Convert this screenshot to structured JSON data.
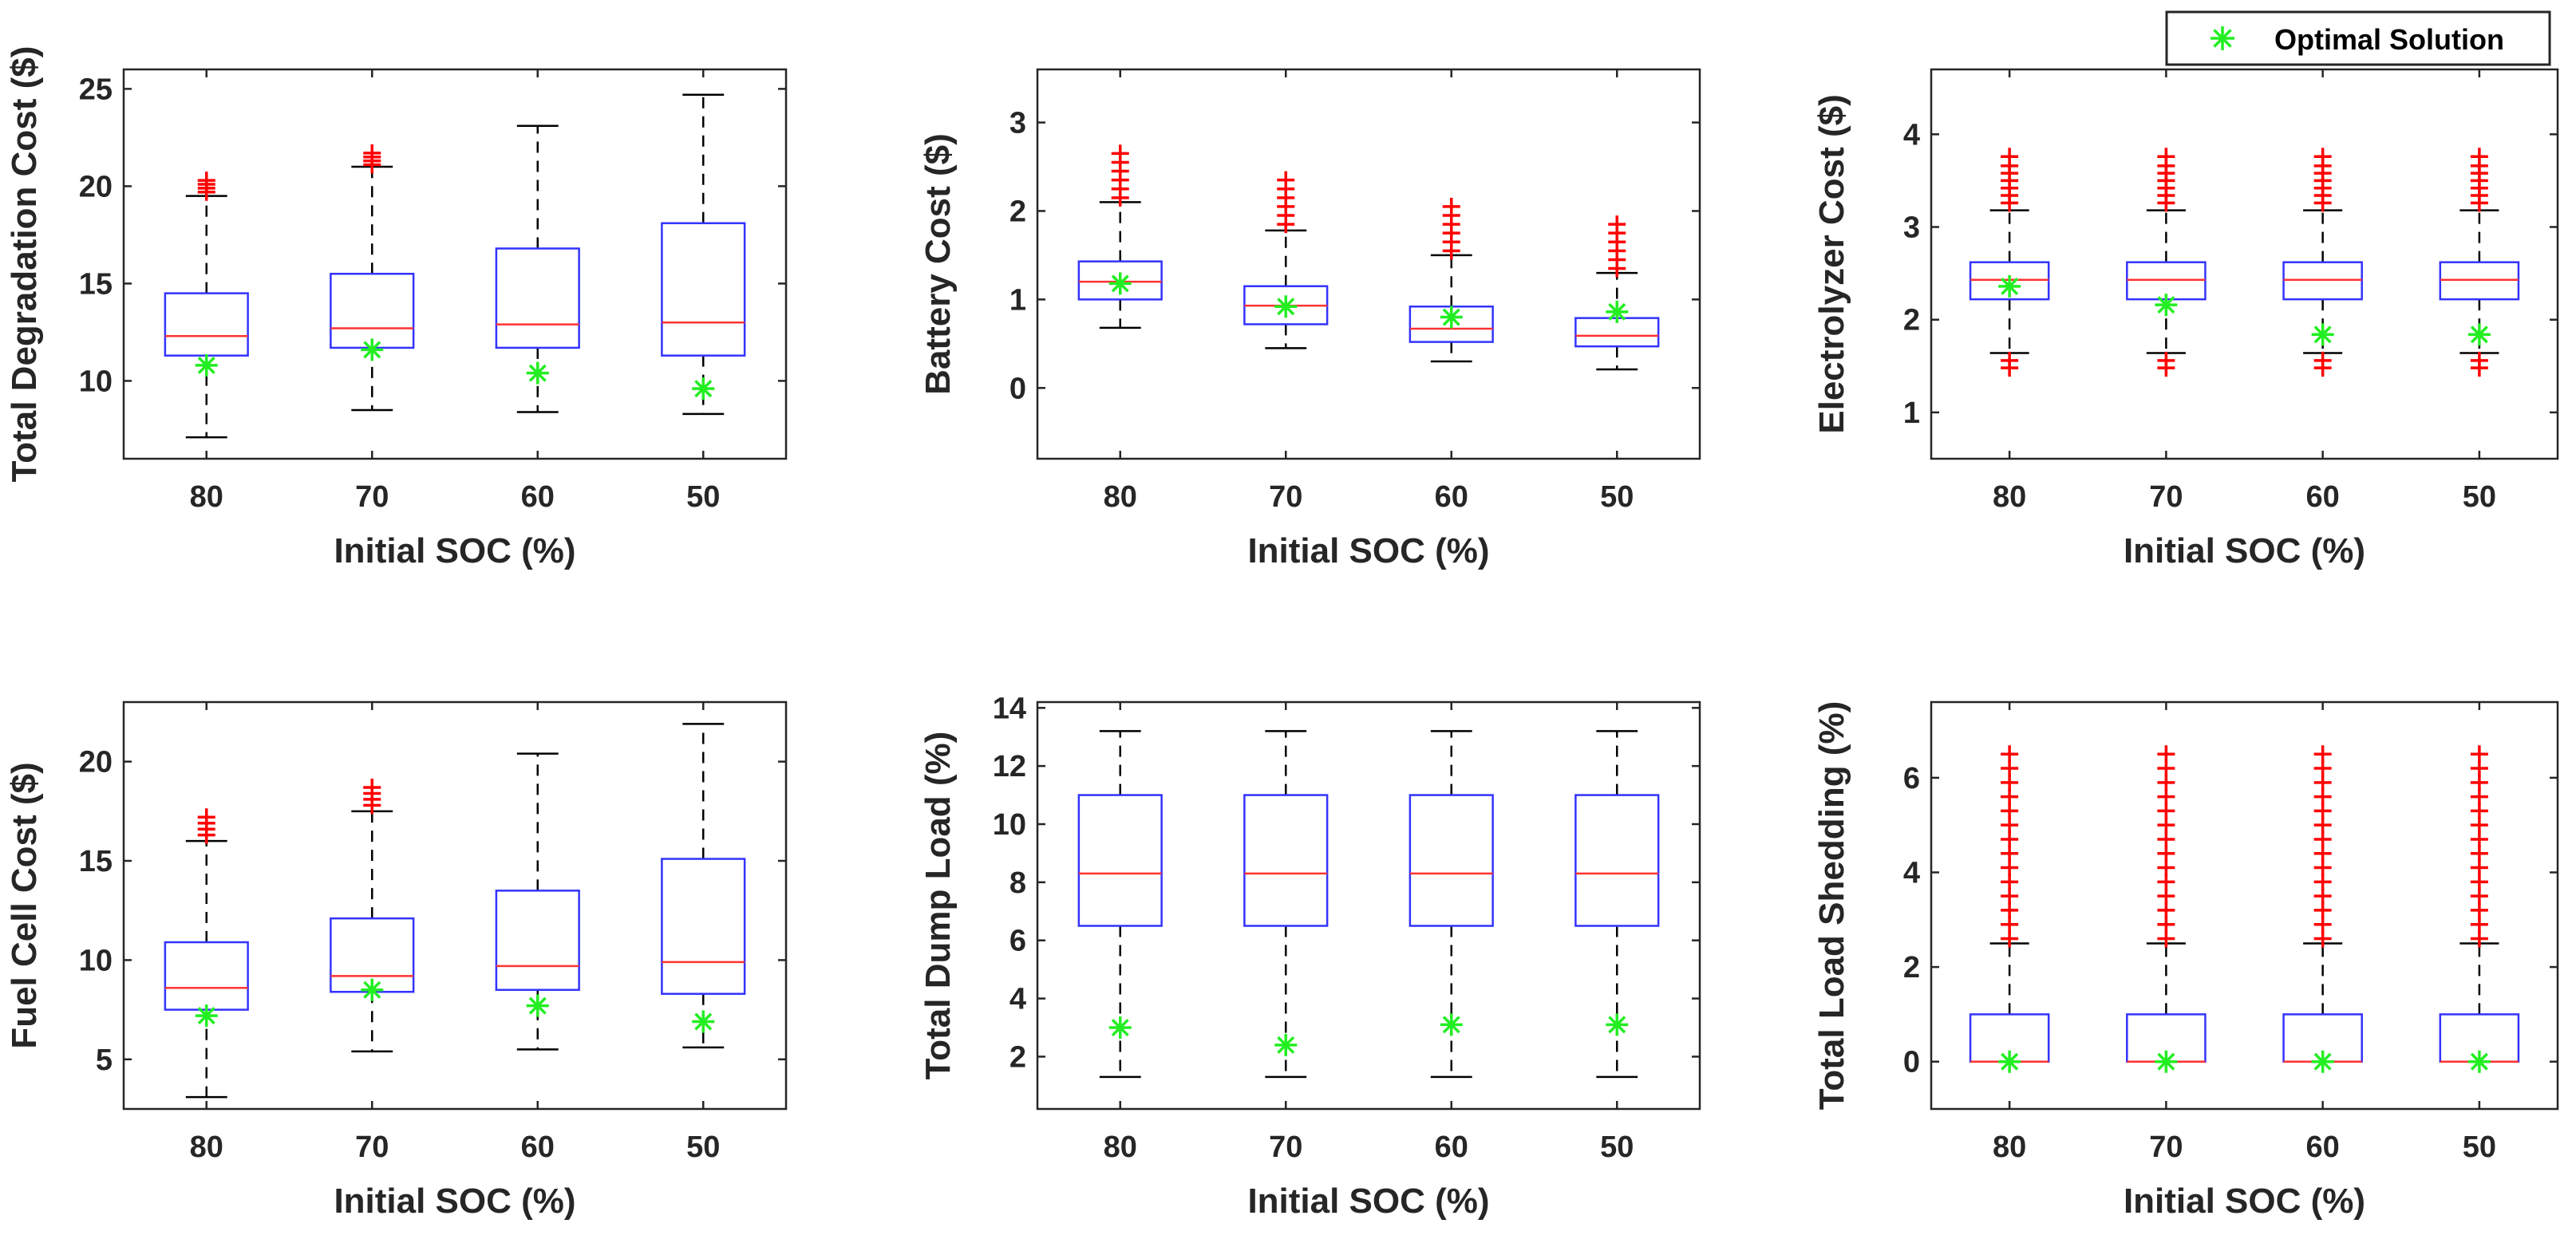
{
  "colors": {
    "box": "#3333ff",
    "median": "#ff3333",
    "whisker": "#000000",
    "outlier": "#ff0000",
    "optimal": "#22ee22",
    "axis": "#262626"
  },
  "legend": {
    "label": "Optimal Solution",
    "marker_icon": "green-asterisk-icon"
  },
  "chart_data": [
    {
      "type": "boxplot",
      "xlabel": "Initial SOC (%)",
      "ylabel": "Total Degradation Cost ($)",
      "categories": [
        "80",
        "70",
        "60",
        "50"
      ],
      "ylim": [
        6,
        26
      ],
      "yticks": [
        10,
        15,
        20,
        25
      ],
      "boxes": [
        {
          "lower_whisker": 7.1,
          "q1": 11.3,
          "median": 12.3,
          "q3": 14.5,
          "upper_whisker": 19.5,
          "outliers": [
            19.7,
            19.9,
            20.1,
            20.3
          ]
        },
        {
          "lower_whisker": 8.5,
          "q1": 11.7,
          "median": 12.7,
          "q3": 15.5,
          "upper_whisker": 21.0,
          "outliers": [
            21.1,
            21.3,
            21.5,
            21.7
          ]
        },
        {
          "lower_whisker": 8.4,
          "q1": 11.7,
          "median": 12.9,
          "q3": 16.8,
          "upper_whisker": 23.1,
          "outliers": []
        },
        {
          "lower_whisker": 8.3,
          "q1": 11.3,
          "median": 13.0,
          "q3": 18.1,
          "upper_whisker": 24.7,
          "outliers": []
        }
      ],
      "optimal_solution": [
        10.8,
        11.6,
        10.4,
        9.6
      ]
    },
    {
      "type": "boxplot",
      "xlabel": "Initial SOC (%)",
      "ylabel": "Battery Cost ($)",
      "categories": [
        "80",
        "70",
        "60",
        "50"
      ],
      "ylim": [
        -0.8,
        3.6
      ],
      "yticks": [
        0,
        1,
        2,
        3
      ],
      "boxes": [
        {
          "lower_whisker": 0.68,
          "q1": 1.0,
          "median": 1.2,
          "q3": 1.43,
          "upper_whisker": 2.1,
          "outliers": [
            2.15,
            2.25,
            2.35,
            2.45,
            2.55,
            2.65
          ]
        },
        {
          "lower_whisker": 0.45,
          "q1": 0.72,
          "median": 0.93,
          "q3": 1.15,
          "upper_whisker": 1.78,
          "outliers": [
            1.85,
            1.95,
            2.05,
            2.15,
            2.25,
            2.35
          ]
        },
        {
          "lower_whisker": 0.3,
          "q1": 0.52,
          "median": 0.67,
          "q3": 0.92,
          "upper_whisker": 1.5,
          "outliers": [
            1.55,
            1.65,
            1.75,
            1.85,
            1.95,
            2.05
          ]
        },
        {
          "lower_whisker": 0.21,
          "q1": 0.47,
          "median": 0.59,
          "q3": 0.79,
          "upper_whisker": 1.3,
          "outliers": [
            1.35,
            1.45,
            1.55,
            1.65,
            1.75,
            1.85
          ]
        }
      ],
      "optimal_solution": [
        1.18,
        0.92,
        0.8,
        0.86
      ]
    },
    {
      "type": "boxplot",
      "xlabel": "Initial SOC (%)",
      "ylabel": "Electrolyzer Cost ($)",
      "categories": [
        "80",
        "70",
        "60",
        "50"
      ],
      "ylim": [
        0.5,
        4.7
      ],
      "yticks": [
        1,
        2,
        3,
        4
      ],
      "boxes": [
        {
          "lower_whisker": 1.64,
          "q1": 2.22,
          "median": 2.43,
          "q3": 2.62,
          "upper_whisker": 3.18,
          "outliers": [
            1.48,
            1.56,
            3.26,
            3.34,
            3.42,
            3.5,
            3.58,
            3.66,
            3.76
          ]
        },
        {
          "lower_whisker": 1.64,
          "q1": 2.22,
          "median": 2.43,
          "q3": 2.62,
          "upper_whisker": 3.18,
          "outliers": [
            1.48,
            1.56,
            3.26,
            3.34,
            3.42,
            3.5,
            3.58,
            3.66,
            3.76
          ]
        },
        {
          "lower_whisker": 1.64,
          "q1": 2.22,
          "median": 2.43,
          "q3": 2.62,
          "upper_whisker": 3.18,
          "outliers": [
            1.48,
            1.56,
            3.26,
            3.34,
            3.42,
            3.5,
            3.58,
            3.66,
            3.76
          ]
        },
        {
          "lower_whisker": 1.64,
          "q1": 2.22,
          "median": 2.43,
          "q3": 2.62,
          "upper_whisker": 3.18,
          "outliers": [
            1.48,
            1.56,
            3.26,
            3.34,
            3.42,
            3.5,
            3.58,
            3.66,
            3.76
          ]
        }
      ],
      "optimal_solution": [
        2.36,
        2.16,
        1.84,
        1.84
      ]
    },
    {
      "type": "boxplot",
      "xlabel": "Initial SOC (%)",
      "ylabel": "Fuel Cell Cost ($)",
      "categories": [
        "80",
        "70",
        "60",
        "50"
      ],
      "ylim": [
        2.5,
        23
      ],
      "yticks": [
        5,
        10,
        15,
        20
      ],
      "boxes": [
        {
          "lower_whisker": 3.1,
          "q1": 7.5,
          "median": 8.6,
          "q3": 10.9,
          "upper_whisker": 16.0,
          "outliers": [
            16.3,
            16.6,
            16.9,
            17.2
          ]
        },
        {
          "lower_whisker": 5.4,
          "q1": 8.4,
          "median": 9.2,
          "q3": 12.1,
          "upper_whisker": 17.5,
          "outliers": [
            17.8,
            18.1,
            18.4,
            18.7
          ]
        },
        {
          "lower_whisker": 5.5,
          "q1": 8.5,
          "median": 9.7,
          "q3": 13.5,
          "upper_whisker": 20.4,
          "outliers": []
        },
        {
          "lower_whisker": 5.6,
          "q1": 8.3,
          "median": 9.9,
          "q3": 15.1,
          "upper_whisker": 21.9,
          "outliers": []
        }
      ],
      "optimal_solution": [
        7.2,
        8.5,
        7.7,
        6.9
      ]
    },
    {
      "type": "boxplot",
      "xlabel": "Initial SOC (%)",
      "ylabel": "Total Dump Load (%)",
      "categories": [
        "80",
        "70",
        "60",
        "50"
      ],
      "ylim": [
        0.2,
        14.2
      ],
      "yticks": [
        2,
        4,
        6,
        8,
        10,
        12,
        14
      ],
      "boxes": [
        {
          "lower_whisker": 1.3,
          "q1": 6.5,
          "median": 8.3,
          "q3": 11.0,
          "upper_whisker": 13.2,
          "outliers": []
        },
        {
          "lower_whisker": 1.3,
          "q1": 6.5,
          "median": 8.3,
          "q3": 11.0,
          "upper_whisker": 13.2,
          "outliers": []
        },
        {
          "lower_whisker": 1.3,
          "q1": 6.5,
          "median": 8.3,
          "q3": 11.0,
          "upper_whisker": 13.2,
          "outliers": []
        },
        {
          "lower_whisker": 1.3,
          "q1": 6.5,
          "median": 8.3,
          "q3": 11.0,
          "upper_whisker": 13.2,
          "outliers": []
        }
      ],
      "optimal_solution": [
        3.0,
        2.4,
        3.1,
        3.1
      ]
    },
    {
      "type": "boxplot",
      "xlabel": "Initial SOC (%)",
      "ylabel": "Total Load Shedding (%)",
      "categories": [
        "80",
        "70",
        "60",
        "50"
      ],
      "ylim": [
        -1.0,
        7.6
      ],
      "yticks": [
        0,
        2,
        4,
        6
      ],
      "boxes": [
        {
          "lower_whisker": 0,
          "q1": 0,
          "median": 0,
          "q3": 1.0,
          "upper_whisker": 2.5,
          "outliers": [
            2.6,
            2.9,
            3.2,
            3.5,
            3.8,
            4.1,
            4.4,
            4.7,
            5.0,
            5.3,
            5.6,
            5.9,
            6.2,
            6.5
          ]
        },
        {
          "lower_whisker": 0,
          "q1": 0,
          "median": 0,
          "q3": 1.0,
          "upper_whisker": 2.5,
          "outliers": [
            2.6,
            2.9,
            3.2,
            3.5,
            3.8,
            4.1,
            4.4,
            4.7,
            5.0,
            5.3,
            5.6,
            5.9,
            6.2,
            6.5
          ]
        },
        {
          "lower_whisker": 0,
          "q1": 0,
          "median": 0,
          "q3": 1.0,
          "upper_whisker": 2.5,
          "outliers": [
            2.6,
            2.9,
            3.2,
            3.5,
            3.8,
            4.1,
            4.4,
            4.7,
            5.0,
            5.3,
            5.6,
            5.9,
            6.2,
            6.5
          ]
        },
        {
          "lower_whisker": 0,
          "q1": 0,
          "median": 0,
          "q3": 1.0,
          "upper_whisker": 2.5,
          "outliers": [
            2.6,
            2.9,
            3.2,
            3.5,
            3.8,
            4.1,
            4.4,
            4.7,
            5.0,
            5.3,
            5.6,
            5.9,
            6.2,
            6.5
          ]
        }
      ],
      "optimal_solution": [
        0.0,
        0.0,
        0.0,
        0.0
      ]
    }
  ]
}
